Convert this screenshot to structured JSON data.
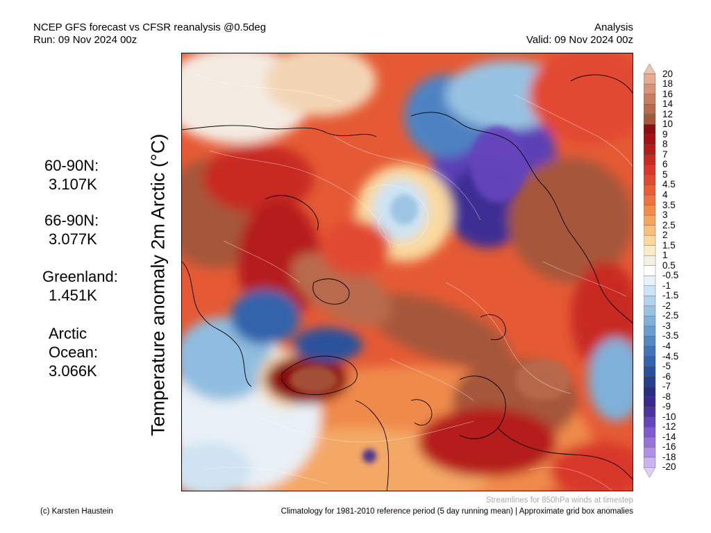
{
  "header": {
    "title": "NCEP GFS forecast vs CFSR reanalysis @0.5deg",
    "run": "Run: 09 Nov 2024 00z",
    "kind": "Analysis",
    "valid": "Valid: 09 Nov 2024 00z"
  },
  "y_label": "Temperature anomaly 2m Arctic (°C)",
  "stats": [
    {
      "lines": [
        "60-90N:",
        "3.107K"
      ]
    },
    {
      "lines": [
        "66-90N:",
        "3.077K"
      ]
    },
    {
      "lines": [
        "Greenland:",
        "1.451K"
      ]
    },
    {
      "lines": [
        "Arctic",
        "Ocean:",
        "3.066K"
      ]
    }
  ],
  "map": {
    "projection": "polar-stereographic, north pole centred",
    "variable": "2m temperature anomaly",
    "streamlines": "850hPa winds",
    "dominant_anomaly": "warm (red/brown) over most of the Arctic; cold (blue/purple) over north-eastern Siberia, north-eastern Canada and the north-west Atlantic"
  },
  "legend": {
    "labels": [
      "20",
      "18",
      "16",
      "14",
      "12",
      "10",
      "9",
      "8",
      "7",
      "6",
      "5",
      "4.5",
      "4",
      "3.5",
      "3",
      "2.5",
      "2",
      "1.5",
      "1",
      "0.5",
      "-0.5",
      "-1",
      "-1.5",
      "-2",
      "-2.5",
      "-3",
      "-3.5",
      "-4",
      "-4.5",
      "-5",
      "-6",
      "-7",
      "-8",
      "-9",
      "-10",
      "-12",
      "-14",
      "-16",
      "-18",
      "-20"
    ],
    "colors": [
      "#efc2b0",
      "#e5ab93",
      "#d89478",
      "#c97d60",
      "#b96a4d",
      "#a5563b",
      "#8c1010",
      "#a01414",
      "#b51c1a",
      "#c82a22",
      "#d8372a",
      "#e24a30",
      "#ea5d35",
      "#ef733e",
      "#f38b49",
      "#f6a65c",
      "#f8c079",
      "#fad99e",
      "#fcecc6",
      "#f4f0e4",
      "#ffffff",
      "#e6f1fa",
      "#cde3f3",
      "#b2d3eb",
      "#98c2e2",
      "#7fb0d9",
      "#679dcf",
      "#5289c4",
      "#4175b8",
      "#3363ab",
      "#2b519c",
      "#293f8d",
      "#2a2e80",
      "#3a2a8f",
      "#4c34a6",
      "#6645bd",
      "#7f5ad0",
      "#9873de",
      "#b090ea",
      "#c9b4f2",
      "#ddd0f8"
    ]
  },
  "footer": {
    "credit": "(c) Karsten Haustein",
    "streamlines_note": "Streamlines for 850hPa winds at timestep",
    "climatology_note": "Climatology for 1981-2010 reference period (5 day running mean) | Approximate grid box anomalies"
  }
}
